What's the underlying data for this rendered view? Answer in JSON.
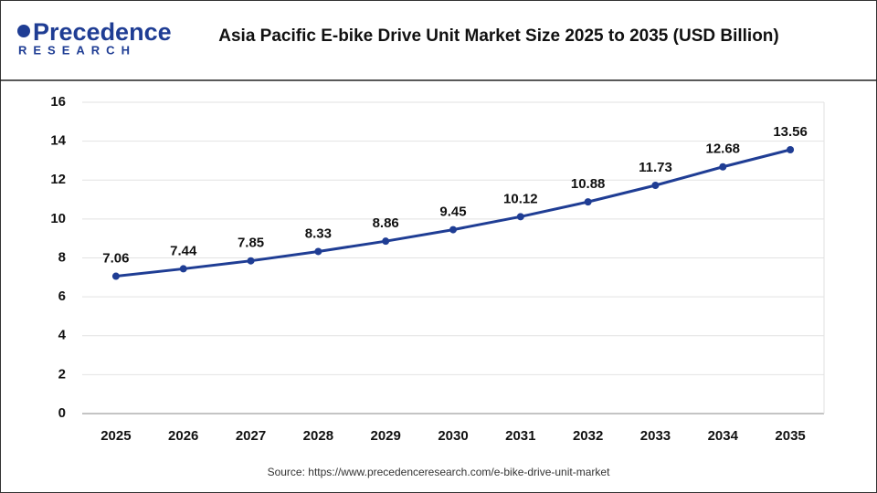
{
  "logo": {
    "name": "Precedence",
    "sub": "RESEARCH"
  },
  "chart_data": {
    "type": "line",
    "title": "Asia Pacific E-bike Drive Unit Market Size 2025 to 2035 (USD Billion)",
    "categories": [
      "2025",
      "2026",
      "2027",
      "2028",
      "2029",
      "2030",
      "2031",
      "2032",
      "2033",
      "2034",
      "2035"
    ],
    "values": [
      7.06,
      7.44,
      7.85,
      8.33,
      8.86,
      9.45,
      10.12,
      10.88,
      11.73,
      12.68,
      13.56
    ],
    "value_labels": [
      "7.06",
      "7.44",
      "7.85",
      "8.33",
      "8.86",
      "9.45",
      "10.12",
      "10.88",
      "11.73",
      "12.68",
      "13.56"
    ],
    "color": "#1f3d94",
    "ylim": [
      0,
      16
    ],
    "yticks": [
      0,
      2,
      4,
      6,
      8,
      10,
      12,
      14,
      16
    ],
    "grid": true,
    "source": "Source: https://www.precedenceresearch.com/e-bike-drive-unit-market"
  }
}
